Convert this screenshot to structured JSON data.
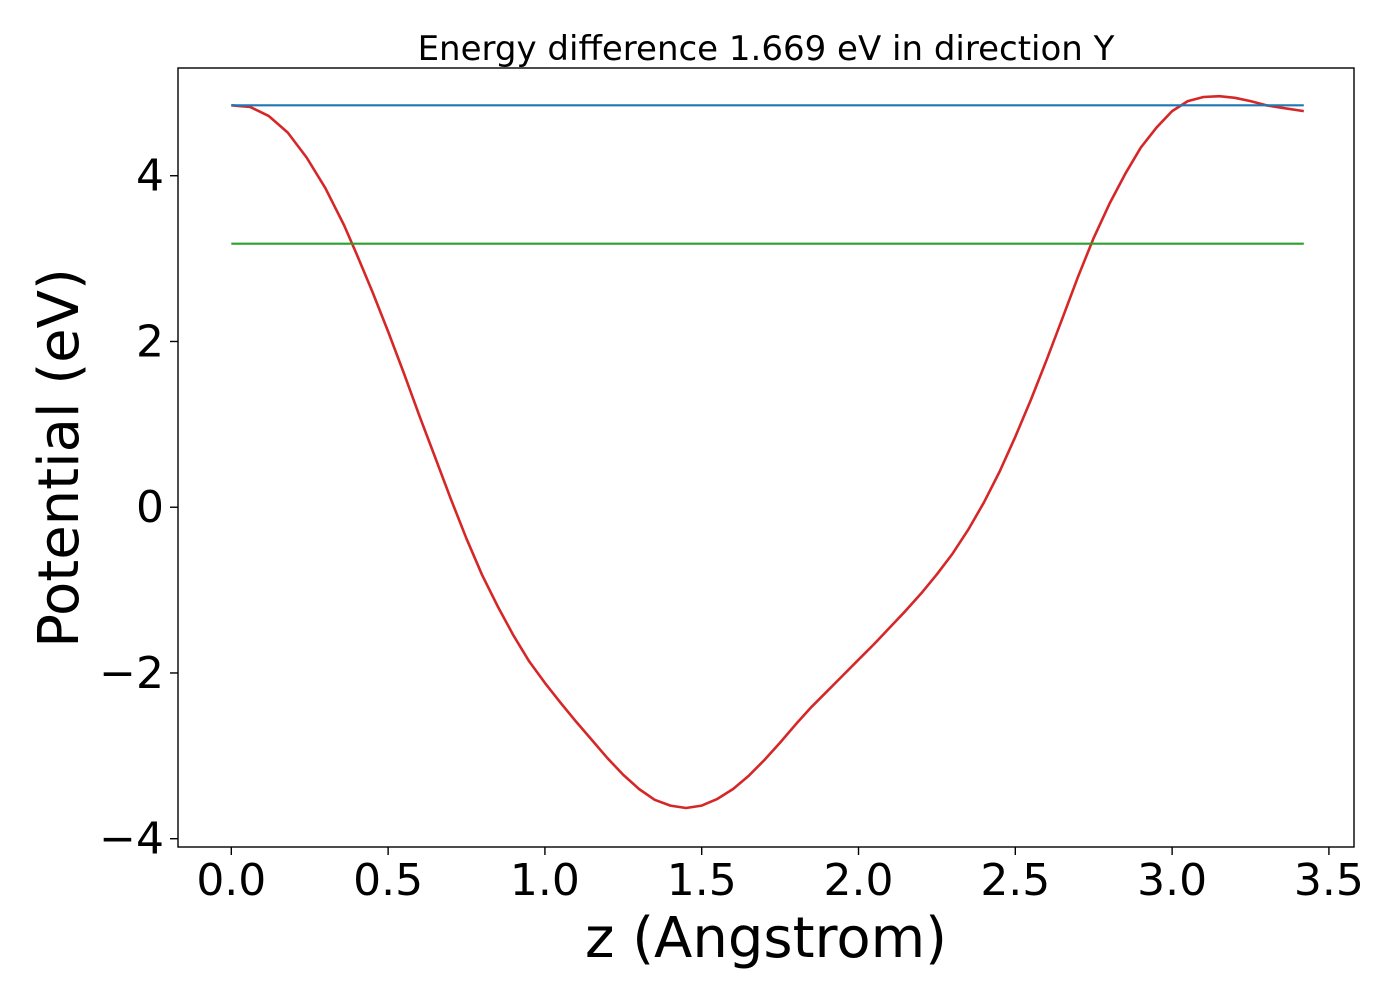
{
  "chart_data": {
    "type": "line",
    "title": "Energy difference 1.669 eV in direction Y",
    "xlabel": "z (Angstrom)",
    "ylabel": "Potential (eV)",
    "xlim": [
      -0.17,
      3.58
    ],
    "ylim": [
      -4.1,
      5.3
    ],
    "xticks": [
      0.0,
      0.5,
      1.0,
      1.5,
      2.0,
      2.5,
      3.0,
      3.5
    ],
    "xtick_labels": [
      "0.0",
      "0.5",
      "1.0",
      "1.5",
      "2.0",
      "2.5",
      "3.0",
      "3.5"
    ],
    "yticks": [
      -4,
      -2,
      0,
      2,
      4
    ],
    "ytick_labels": [
      "−4",
      "−2",
      "0",
      "2",
      "4"
    ],
    "grid": false,
    "colors": {
      "potential": "#d62728",
      "vacuum_level": "#1f77b4",
      "fermi_level": "#2ca02c"
    },
    "series": [
      {
        "key": "potential",
        "x": [
          0.0,
          0.06,
          0.12,
          0.18,
          0.24,
          0.3,
          0.36,
          0.4,
          0.45,
          0.5,
          0.55,
          0.6,
          0.65,
          0.7,
          0.75,
          0.8,
          0.85,
          0.9,
          0.95,
          1.0,
          1.05,
          1.1,
          1.15,
          1.2,
          1.25,
          1.3,
          1.35,
          1.4,
          1.45,
          1.5,
          1.55,
          1.6,
          1.65,
          1.7,
          1.75,
          1.8,
          1.85,
          1.9,
          1.95,
          2.0,
          2.05,
          2.1,
          2.15,
          2.2,
          2.25,
          2.3,
          2.35,
          2.4,
          2.45,
          2.5,
          2.55,
          2.6,
          2.65,
          2.7,
          2.75,
          2.8,
          2.85,
          2.9,
          2.95,
          3.0,
          3.05,
          3.1,
          3.15,
          3.2,
          3.25,
          3.3,
          3.35,
          3.42
        ],
        "y": [
          4.85,
          4.83,
          4.72,
          4.52,
          4.22,
          3.85,
          3.4,
          3.05,
          2.6,
          2.12,
          1.62,
          1.1,
          0.6,
          0.1,
          -0.38,
          -0.82,
          -1.2,
          -1.55,
          -1.86,
          -2.12,
          -2.36,
          -2.59,
          -2.81,
          -3.03,
          -3.23,
          -3.4,
          -3.53,
          -3.6,
          -3.63,
          -3.6,
          -3.52,
          -3.4,
          -3.24,
          -3.05,
          -2.84,
          -2.62,
          -2.41,
          -2.22,
          -2.03,
          -1.84,
          -1.65,
          -1.45,
          -1.25,
          -1.04,
          -0.81,
          -0.56,
          -0.27,
          0.06,
          0.43,
          0.85,
          1.3,
          1.78,
          2.28,
          2.78,
          3.25,
          3.66,
          4.02,
          4.34,
          4.58,
          4.78,
          4.9,
          4.95,
          4.96,
          4.94,
          4.9,
          4.85,
          4.82,
          4.78
        ]
      },
      {
        "key": "vacuum_level",
        "x": [
          0.0,
          3.42
        ],
        "y": [
          4.85,
          4.85
        ]
      },
      {
        "key": "fermi_level",
        "x": [
          0.0,
          3.42
        ],
        "y": [
          3.18,
          3.18
        ]
      }
    ]
  }
}
